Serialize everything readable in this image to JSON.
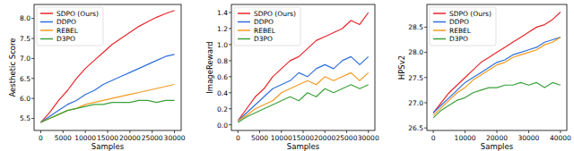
{
  "chart_data": [
    {
      "type": "line",
      "y_label": "Aesthetic Score",
      "x_label": "Samples",
      "x": [
        0,
        2000,
        4000,
        6000,
        8000,
        10000,
        12000,
        14000,
        16000,
        18000,
        20000,
        22000,
        24000,
        26000,
        28000,
        30000
      ],
      "xlim": [
        -1500,
        31500
      ],
      "xticks": [
        0,
        5000,
        10000,
        15000,
        20000,
        25000,
        30000
      ],
      "ylim": [
        5.2,
        8.35
      ],
      "yticks": [
        {
          "value": 5.5,
          "label": "5.5"
        },
        {
          "value": 6.0,
          "label": "6.0"
        },
        {
          "value": 6.5,
          "label": "6.5"
        },
        {
          "value": 7.0,
          "label": "7.0"
        },
        {
          "value": 7.5,
          "label": "7.5"
        },
        {
          "value": 8.0,
          "label": "8.0"
        }
      ],
      "grid": false,
      "legend": "upper left",
      "series": [
        {
          "name": "SDPO (Ours)",
          "color": "#e8262a",
          "values": [
            5.4,
            5.65,
            5.95,
            6.2,
            6.5,
            6.75,
            6.95,
            7.15,
            7.35,
            7.5,
            7.65,
            7.8,
            7.92,
            8.03,
            8.12,
            8.2
          ]
        },
        {
          "name": "DDPO",
          "color": "#2f6fdc",
          "values": [
            5.4,
            5.55,
            5.7,
            5.85,
            5.95,
            6.1,
            6.2,
            6.35,
            6.45,
            6.55,
            6.65,
            6.75,
            6.85,
            6.95,
            7.05,
            7.1
          ]
        },
        {
          "name": "REBEL",
          "color": "#f39a1e",
          "values": [
            5.4,
            5.5,
            5.6,
            5.7,
            5.75,
            5.85,
            5.9,
            5.95,
            6.0,
            6.05,
            6.1,
            6.15,
            6.2,
            6.25,
            6.3,
            6.35
          ]
        },
        {
          "name": "D3PO",
          "color": "#3aa13a",
          "values": [
            5.4,
            5.5,
            5.6,
            5.7,
            5.75,
            5.8,
            5.85,
            5.85,
            5.9,
            5.9,
            5.9,
            5.95,
            5.95,
            5.9,
            5.95,
            5.95
          ]
        }
      ]
    },
    {
      "type": "line",
      "y_label": "ImageReward",
      "x_label": "Samples",
      "x": [
        0,
        2000,
        4000,
        6000,
        8000,
        10000,
        12000,
        14000,
        16000,
        18000,
        20000,
        22000,
        24000,
        26000,
        28000,
        30000
      ],
      "xlim": [
        -1500,
        31500
      ],
      "xticks": [
        0,
        5000,
        10000,
        15000,
        20000,
        25000,
        30000
      ],
      "ylim": [
        -0.07,
        1.5
      ],
      "yticks": [
        {
          "value": 0,
          "label": "0.0"
        },
        {
          "value": 0.2,
          "label": "0.2"
        },
        {
          "value": 0.4,
          "label": "0.4"
        },
        {
          "value": 0.6,
          "label": "0.6"
        },
        {
          "value": 0.8,
          "label": "0.8"
        },
        {
          "value": 1.0,
          "label": "1.0"
        },
        {
          "value": 1.2,
          "label": "1.2"
        },
        {
          "value": 1.4,
          "label": "1.4"
        }
      ],
      "grid": false,
      "legend": "upper left",
      "series": [
        {
          "name": "SDPO (Ours)",
          "color": "#e8262a",
          "values": [
            0.05,
            0.2,
            0.35,
            0.45,
            0.6,
            0.7,
            0.8,
            0.85,
            0.95,
            1.05,
            1.1,
            1.15,
            1.2,
            1.3,
            1.25,
            1.4
          ]
        },
        {
          "name": "DDPO",
          "color": "#2f6fdc",
          "values": [
            0.05,
            0.15,
            0.25,
            0.35,
            0.45,
            0.5,
            0.55,
            0.65,
            0.6,
            0.7,
            0.75,
            0.7,
            0.8,
            0.85,
            0.75,
            0.85
          ]
        },
        {
          "name": "REBEL",
          "color": "#f39a1e",
          "values": [
            0.05,
            0.12,
            0.2,
            0.25,
            0.3,
            0.4,
            0.45,
            0.5,
            0.55,
            0.5,
            0.6,
            0.55,
            0.6,
            0.65,
            0.55,
            0.65
          ]
        },
        {
          "name": "D3PO",
          "color": "#3aa13a",
          "values": [
            0.03,
            0.1,
            0.15,
            0.2,
            0.25,
            0.3,
            0.35,
            0.3,
            0.4,
            0.35,
            0.45,
            0.4,
            0.45,
            0.5,
            0.45,
            0.5
          ]
        }
      ]
    },
    {
      "type": "line",
      "y_label": "HPSv2",
      "x_label": "Samples",
      "x": [
        0,
        2500,
        5000,
        7500,
        10000,
        12500,
        15000,
        17500,
        20000,
        22500,
        25000,
        27500,
        30000,
        32500,
        35000,
        37500,
        40000
      ],
      "xlim": [
        -2000,
        42000
      ],
      "xticks": [
        0,
        10000,
        20000,
        30000,
        40000
      ],
      "ylim": [
        26.45,
        28.95
      ],
      "yticks": [
        {
          "value": 26.5,
          "label": "26.5"
        },
        {
          "value": 27.0,
          "label": "27.0"
        },
        {
          "value": 27.5,
          "label": "27.5"
        },
        {
          "value": 28.0,
          "label": "28.0"
        },
        {
          "value": 28.5,
          "label": "28.5"
        }
      ],
      "grid": false,
      "legend": "upper left",
      "series": [
        {
          "name": "SDPO (Ours)",
          "color": "#e8262a",
          "values": [
            26.8,
            27.0,
            27.2,
            27.35,
            27.5,
            27.65,
            27.8,
            27.9,
            28.0,
            28.1,
            28.2,
            28.3,
            28.4,
            28.5,
            28.55,
            28.65,
            28.8
          ]
        },
        {
          "name": "DDPO",
          "color": "#2f6fdc",
          "values": [
            26.8,
            26.95,
            27.1,
            27.25,
            27.4,
            27.5,
            27.6,
            27.7,
            27.8,
            27.85,
            27.95,
            28.0,
            28.05,
            28.1,
            28.2,
            28.25,
            28.3
          ]
        },
        {
          "name": "REBEL",
          "color": "#f39a1e",
          "values": [
            26.75,
            26.9,
            27.05,
            27.2,
            27.3,
            27.45,
            27.55,
            27.65,
            27.75,
            27.8,
            27.9,
            27.95,
            28.0,
            28.05,
            28.15,
            28.2,
            28.3
          ]
        },
        {
          "name": "D3PO",
          "color": "#3aa13a",
          "values": [
            26.7,
            26.85,
            26.95,
            27.05,
            27.1,
            27.2,
            27.25,
            27.3,
            27.3,
            27.35,
            27.35,
            27.4,
            27.35,
            27.4,
            27.3,
            27.4,
            27.35
          ]
        }
      ]
    }
  ]
}
